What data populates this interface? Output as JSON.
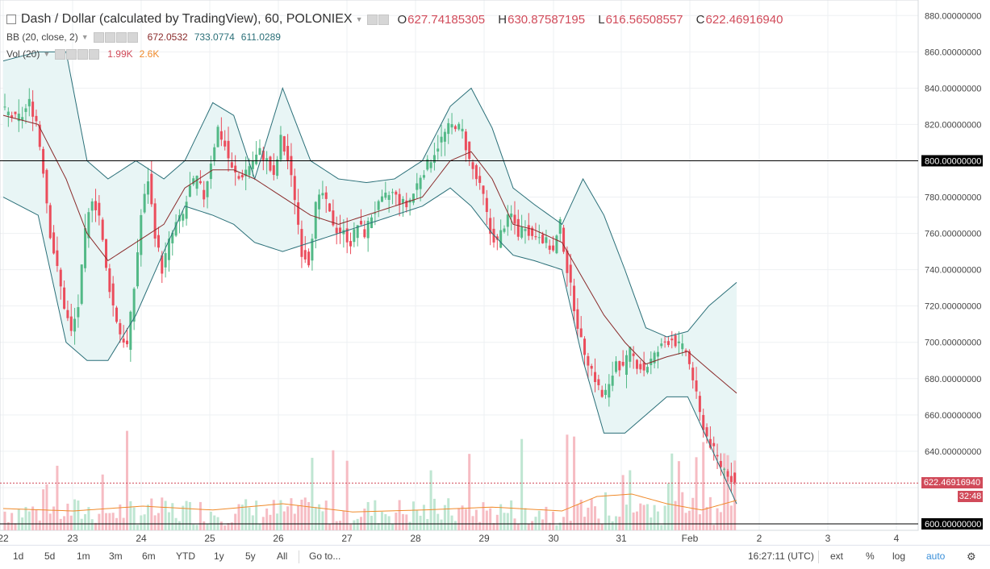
{
  "legend": {
    "symbol": "Dash / Dollar (calculated by TradingView), 60, POLONIEX",
    "ohlc": {
      "o_label": "O",
      "o": "627.74185305",
      "h_label": "H",
      "h": "630.87587195",
      "l_label": "L",
      "l": "616.56508557",
      "c_label": "C",
      "c": "622.46916940"
    },
    "bb": {
      "label": "BB (20, close, 2)",
      "v1": "672.0532",
      "v2": "733.0774",
      "v3": "611.0289"
    },
    "vol": {
      "label": "Vol (20)",
      "v1": "1.99K",
      "v2": "2.6K"
    }
  },
  "price_axis": {
    "ticks": [
      "880.00000000",
      "860.00000000",
      "840.00000000",
      "820.00000000",
      "800.00000000",
      "780.00000000",
      "760.00000000",
      "740.00000000",
      "720.00000000",
      "700.00000000",
      "680.00000000",
      "660.00000000",
      "640.00000000",
      "600.00000000"
    ],
    "highlight_800": "800.00000000",
    "highlight_600": "600.00000000",
    "last_price": "622.46916940",
    "countdown": "32:48"
  },
  "time_axis": {
    "labels": [
      "22",
      "23",
      "24",
      "25",
      "26",
      "27",
      "28",
      "29",
      "30",
      "31",
      "Feb",
      "2",
      "3",
      "4"
    ]
  },
  "bottom_bar": {
    "ranges": [
      "1d",
      "5d",
      "1m",
      "3m",
      "6m",
      "YTD",
      "1y",
      "5y",
      "All"
    ],
    "goto": "Go to...",
    "clock": "16:27:11 (UTC)",
    "ext": "ext",
    "percent": "%",
    "log": "log",
    "auto": "auto"
  },
  "colors": {
    "up": "#53b987",
    "down": "#eb4d5c",
    "bb_basis": "#8a2b2b",
    "bb_band": "#2a6f78",
    "bb_fill": "#e8f5f5",
    "vol_ma": "#f08a2a",
    "last_price": "#d14b5a"
  },
  "chart_data": {
    "type": "candlestick",
    "title": "Dash / Dollar (calculated by TradingView), 60, POLONIEX",
    "ylim": [
      600,
      885
    ],
    "x_ticks": [
      "22",
      "23",
      "24",
      "25",
      "26",
      "27",
      "28",
      "29",
      "30",
      "31",
      "Feb",
      "2",
      "3",
      "4"
    ],
    "last": {
      "open": 627.74185305,
      "high": 630.87587195,
      "low": 616.56508557,
      "close": 622.4691694
    },
    "close_path": [
      [
        0,
        828
      ],
      [
        2,
        826
      ],
      [
        4,
        823
      ],
      [
        6,
        825
      ],
      [
        8,
        832
      ],
      [
        10,
        822
      ],
      [
        12,
        795
      ],
      [
        14,
        760
      ],
      [
        16,
        740
      ],
      [
        18,
        720
      ],
      [
        20,
        705
      ],
      [
        22,
        720
      ],
      [
        24,
        760
      ],
      [
        26,
        780
      ],
      [
        28,
        770
      ],
      [
        30,
        740
      ],
      [
        32,
        720
      ],
      [
        34,
        705
      ],
      [
        36,
        698
      ],
      [
        38,
        730
      ],
      [
        40,
        770
      ],
      [
        42,
        790
      ],
      [
        44,
        760
      ],
      [
        46,
        740
      ],
      [
        48,
        755
      ],
      [
        50,
        765
      ],
      [
        52,
        770
      ],
      [
        54,
        785
      ],
      [
        56,
        790
      ],
      [
        58,
        780
      ],
      [
        60,
        800
      ],
      [
        62,
        818
      ],
      [
        64,
        808
      ],
      [
        66,
        795
      ],
      [
        68,
        790
      ],
      [
        70,
        795
      ],
      [
        72,
        800
      ],
      [
        74,
        805
      ],
      [
        76,
        800
      ],
      [
        78,
        790
      ],
      [
        80,
        812
      ],
      [
        82,
        800
      ],
      [
        84,
        780
      ],
      [
        86,
        750
      ],
      [
        88,
        745
      ],
      [
        90,
        775
      ],
      [
        92,
        782
      ],
      [
        94,
        770
      ],
      [
        96,
        762
      ],
      [
        98,
        760
      ],
      [
        100,
        755
      ],
      [
        102,
        765
      ],
      [
        104,
        760
      ],
      [
        106,
        770
      ],
      [
        108,
        775
      ],
      [
        110,
        780
      ],
      [
        112,
        782
      ],
      [
        114,
        778
      ],
      [
        116,
        775
      ],
      [
        118,
        782
      ],
      [
        120,
        792
      ],
      [
        122,
        798
      ],
      [
        124,
        805
      ],
      [
        126,
        812
      ],
      [
        128,
        818
      ],
      [
        130,
        820
      ],
      [
        132,
        816
      ],
      [
        134,
        800
      ],
      [
        136,
        790
      ],
      [
        138,
        780
      ],
      [
        140,
        760
      ],
      [
        142,
        755
      ],
      [
        144,
        765
      ],
      [
        146,
        770
      ],
      [
        148,
        760
      ],
      [
        150,
        765
      ],
      [
        152,
        758
      ],
      [
        154,
        760
      ],
      [
        156,
        755
      ],
      [
        158,
        750
      ],
      [
        160,
        765
      ],
      [
        162,
        740
      ],
      [
        164,
        720
      ],
      [
        166,
        700
      ],
      [
        168,
        690
      ],
      [
        170,
        680
      ],
      [
        172,
        670
      ],
      [
        174,
        675
      ],
      [
        176,
        690
      ],
      [
        178,
        685
      ],
      [
        180,
        695
      ],
      [
        182,
        688
      ],
      [
        184,
        685
      ],
      [
        186,
        690
      ],
      [
        188,
        695
      ],
      [
        190,
        700
      ],
      [
        192,
        702
      ],
      [
        194,
        698
      ],
      [
        196,
        695
      ],
      [
        198,
        680
      ],
      [
        200,
        660
      ],
      [
        202,
        648
      ],
      [
        204,
        640
      ],
      [
        206,
        632
      ],
      [
        208,
        628
      ],
      [
        210,
        622.5
      ]
    ],
    "series": [
      {
        "name": "BB upper",
        "values": [
          [
            0,
            855
          ],
          [
            10,
            860
          ],
          [
            18,
            860
          ],
          [
            24,
            800
          ],
          [
            30,
            790
          ],
          [
            38,
            800
          ],
          [
            46,
            790
          ],
          [
            52,
            800
          ],
          [
            60,
            832
          ],
          [
            66,
            825
          ],
          [
            72,
            790
          ],
          [
            80,
            840
          ],
          [
            88,
            800
          ],
          [
            96,
            790
          ],
          [
            104,
            788
          ],
          [
            112,
            790
          ],
          [
            120,
            800
          ],
          [
            128,
            830
          ],
          [
            134,
            840
          ],
          [
            140,
            818
          ],
          [
            146,
            785
          ],
          [
            152,
            776
          ],
          [
            160,
            765
          ],
          [
            166,
            790
          ],
          [
            172,
            770
          ],
          [
            178,
            740
          ],
          [
            184,
            708
          ],
          [
            190,
            703
          ],
          [
            196,
            706
          ],
          [
            202,
            720
          ],
          [
            210,
            733
          ]
        ]
      },
      {
        "name": "BB basis",
        "values": [
          [
            0,
            825
          ],
          [
            10,
            820
          ],
          [
            18,
            790
          ],
          [
            24,
            760
          ],
          [
            30,
            745
          ],
          [
            38,
            755
          ],
          [
            46,
            765
          ],
          [
            52,
            785
          ],
          [
            60,
            795
          ],
          [
            66,
            795
          ],
          [
            72,
            790
          ],
          [
            80,
            780
          ],
          [
            88,
            770
          ],
          [
            96,
            765
          ],
          [
            104,
            770
          ],
          [
            112,
            775
          ],
          [
            120,
            780
          ],
          [
            128,
            800
          ],
          [
            134,
            805
          ],
          [
            140,
            790
          ],
          [
            146,
            765
          ],
          [
            152,
            762
          ],
          [
            160,
            755
          ],
          [
            166,
            735
          ],
          [
            172,
            715
          ],
          [
            178,
            700
          ],
          [
            184,
            688
          ],
          [
            190,
            692
          ],
          [
            196,
            695
          ],
          [
            202,
            685
          ],
          [
            210,
            672
          ]
        ]
      },
      {
        "name": "BB lower",
        "values": [
          [
            0,
            780
          ],
          [
            10,
            770
          ],
          [
            18,
            700
          ],
          [
            24,
            690
          ],
          [
            30,
            690
          ],
          [
            38,
            715
          ],
          [
            46,
            750
          ],
          [
            52,
            775
          ],
          [
            60,
            770
          ],
          [
            66,
            765
          ],
          [
            72,
            755
          ],
          [
            80,
            750
          ],
          [
            88,
            755
          ],
          [
            96,
            760
          ],
          [
            104,
            765
          ],
          [
            112,
            770
          ],
          [
            120,
            775
          ],
          [
            128,
            785
          ],
          [
            134,
            775
          ],
          [
            140,
            760
          ],
          [
            146,
            748
          ],
          [
            152,
            745
          ],
          [
            160,
            740
          ],
          [
            166,
            690
          ],
          [
            172,
            650
          ],
          [
            178,
            650
          ],
          [
            184,
            660
          ],
          [
            190,
            670
          ],
          [
            196,
            670
          ],
          [
            202,
            645
          ],
          [
            210,
            611
          ]
        ]
      }
    ],
    "volume_ma": [
      [
        0,
        0.45
      ],
      [
        20,
        0.4
      ],
      [
        40,
        0.5
      ],
      [
        60,
        0.42
      ],
      [
        80,
        0.55
      ],
      [
        100,
        0.38
      ],
      [
        120,
        0.42
      ],
      [
        140,
        0.48
      ],
      [
        160,
        0.4
      ],
      [
        170,
        0.7
      ],
      [
        180,
        0.75
      ],
      [
        190,
        0.55
      ],
      [
        200,
        0.42
      ],
      [
        210,
        0.62
      ]
    ]
  }
}
